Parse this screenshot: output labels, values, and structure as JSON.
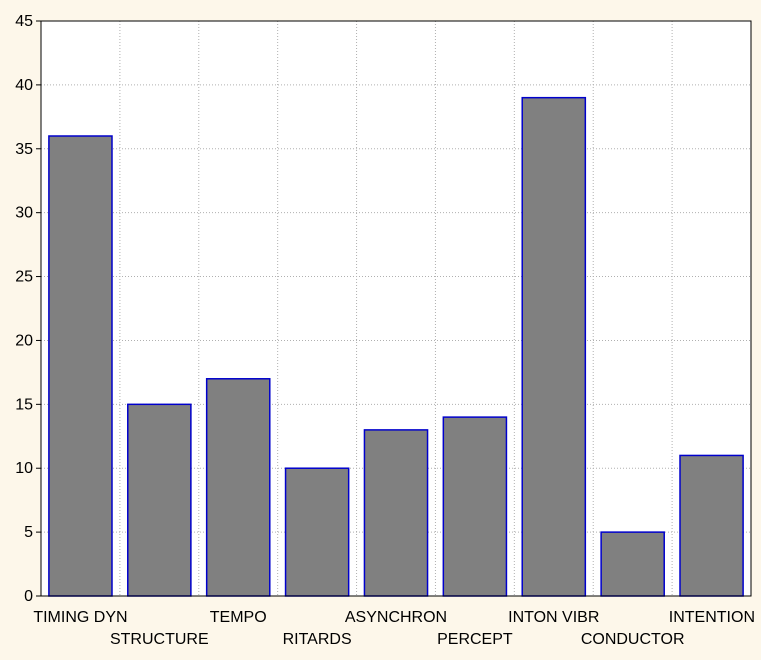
{
  "colors": {
    "background": "#fdf7ea",
    "plot_background": "#ffffff",
    "bar_fill": "#808080",
    "bar_stroke": "#0000cc",
    "grid": "#b0b0b0",
    "axis": "#000000"
  },
  "chart_data": {
    "type": "bar",
    "title": "",
    "xlabel": "",
    "ylabel": "",
    "categories": [
      "TIMING DYN",
      "STRUCTURE",
      "TEMPO",
      "RITARDS",
      "ASYNCHRON",
      "PERCEPT",
      "INTON VIBR",
      "CONDUCTOR",
      "INTENTION"
    ],
    "values": [
      36,
      15,
      17,
      10,
      13,
      14,
      39,
      5,
      11
    ],
    "ylim": [
      0,
      45
    ],
    "yticks": [
      0,
      5,
      10,
      15,
      20,
      25,
      30,
      35,
      40,
      45
    ],
    "grid": true,
    "legend": "none"
  }
}
